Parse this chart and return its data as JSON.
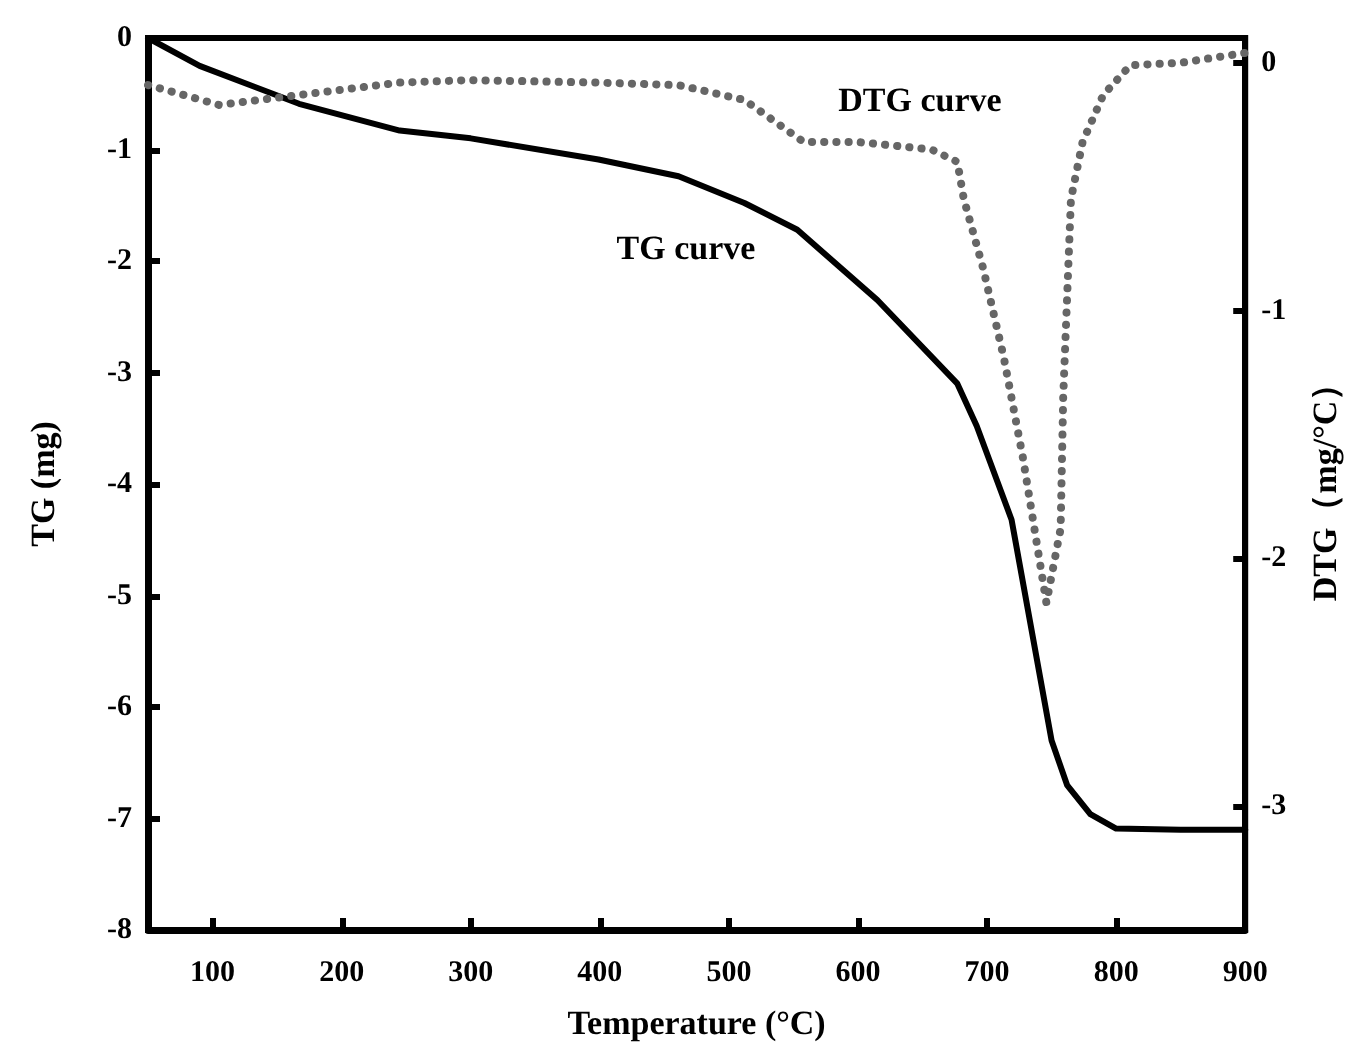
{
  "chart_data": {
    "type": "line",
    "xlabel": "Temperature (°C)",
    "ylabel": "TG (mg)",
    "y2label": "DTG（mg/°C）",
    "xlim": [
      50,
      900
    ],
    "xticks": [
      100,
      200,
      300,
      400,
      500,
      600,
      700,
      800,
      900
    ],
    "ylim": [
      -8,
      0
    ],
    "yticks": [
      -8,
      -7,
      -6,
      -5,
      -4,
      -3,
      -2,
      -1,
      0
    ],
    "y2lim": [
      -3.5,
      0.1
    ],
    "y2ticks": [
      -3,
      -2,
      -1,
      0
    ],
    "grid": false,
    "annotations": [
      "TG curve",
      "DTG curve"
    ],
    "series": [
      {
        "color": "#000000",
        "line_style": "solid",
        "x": [
          50,
          90,
          167,
          245,
          300,
          399,
          461,
          512,
          553,
          615,
          677,
          692,
          719,
          750,
          762,
          780,
          800,
          850,
          900
        ],
        "values": [
          0,
          -0.25,
          -0.59,
          -0.83,
          -0.9,
          -1.09,
          -1.24,
          -1.48,
          -1.72,
          -2.35,
          -3.1,
          -3.48,
          -4.32,
          -6.3,
          -6.7,
          -6.96,
          -7.09,
          -7.1,
          -7.1
        ]
      },
      {
        "color": "#666666",
        "line_style": "dotted",
        "axis": "y2",
        "x": [
          50,
          105,
          167,
          245,
          300,
          399,
          461,
          512,
          558,
          600,
          657,
          677,
          682,
          697,
          713,
          728,
          746,
          757,
          759,
          765,
          774,
          790,
          811,
          850,
          900
        ],
        "values": [
          -0.09,
          -0.17,
          -0.13,
          -0.08,
          -0.07,
          -0.08,
          -0.09,
          -0.15,
          -0.32,
          -0.32,
          -0.35,
          -0.4,
          -0.55,
          -0.83,
          -1.19,
          -1.6,
          -2.18,
          -1.88,
          -1.35,
          -0.55,
          -0.32,
          -0.13,
          -0.01,
          0,
          0.04
        ]
      }
    ]
  }
}
